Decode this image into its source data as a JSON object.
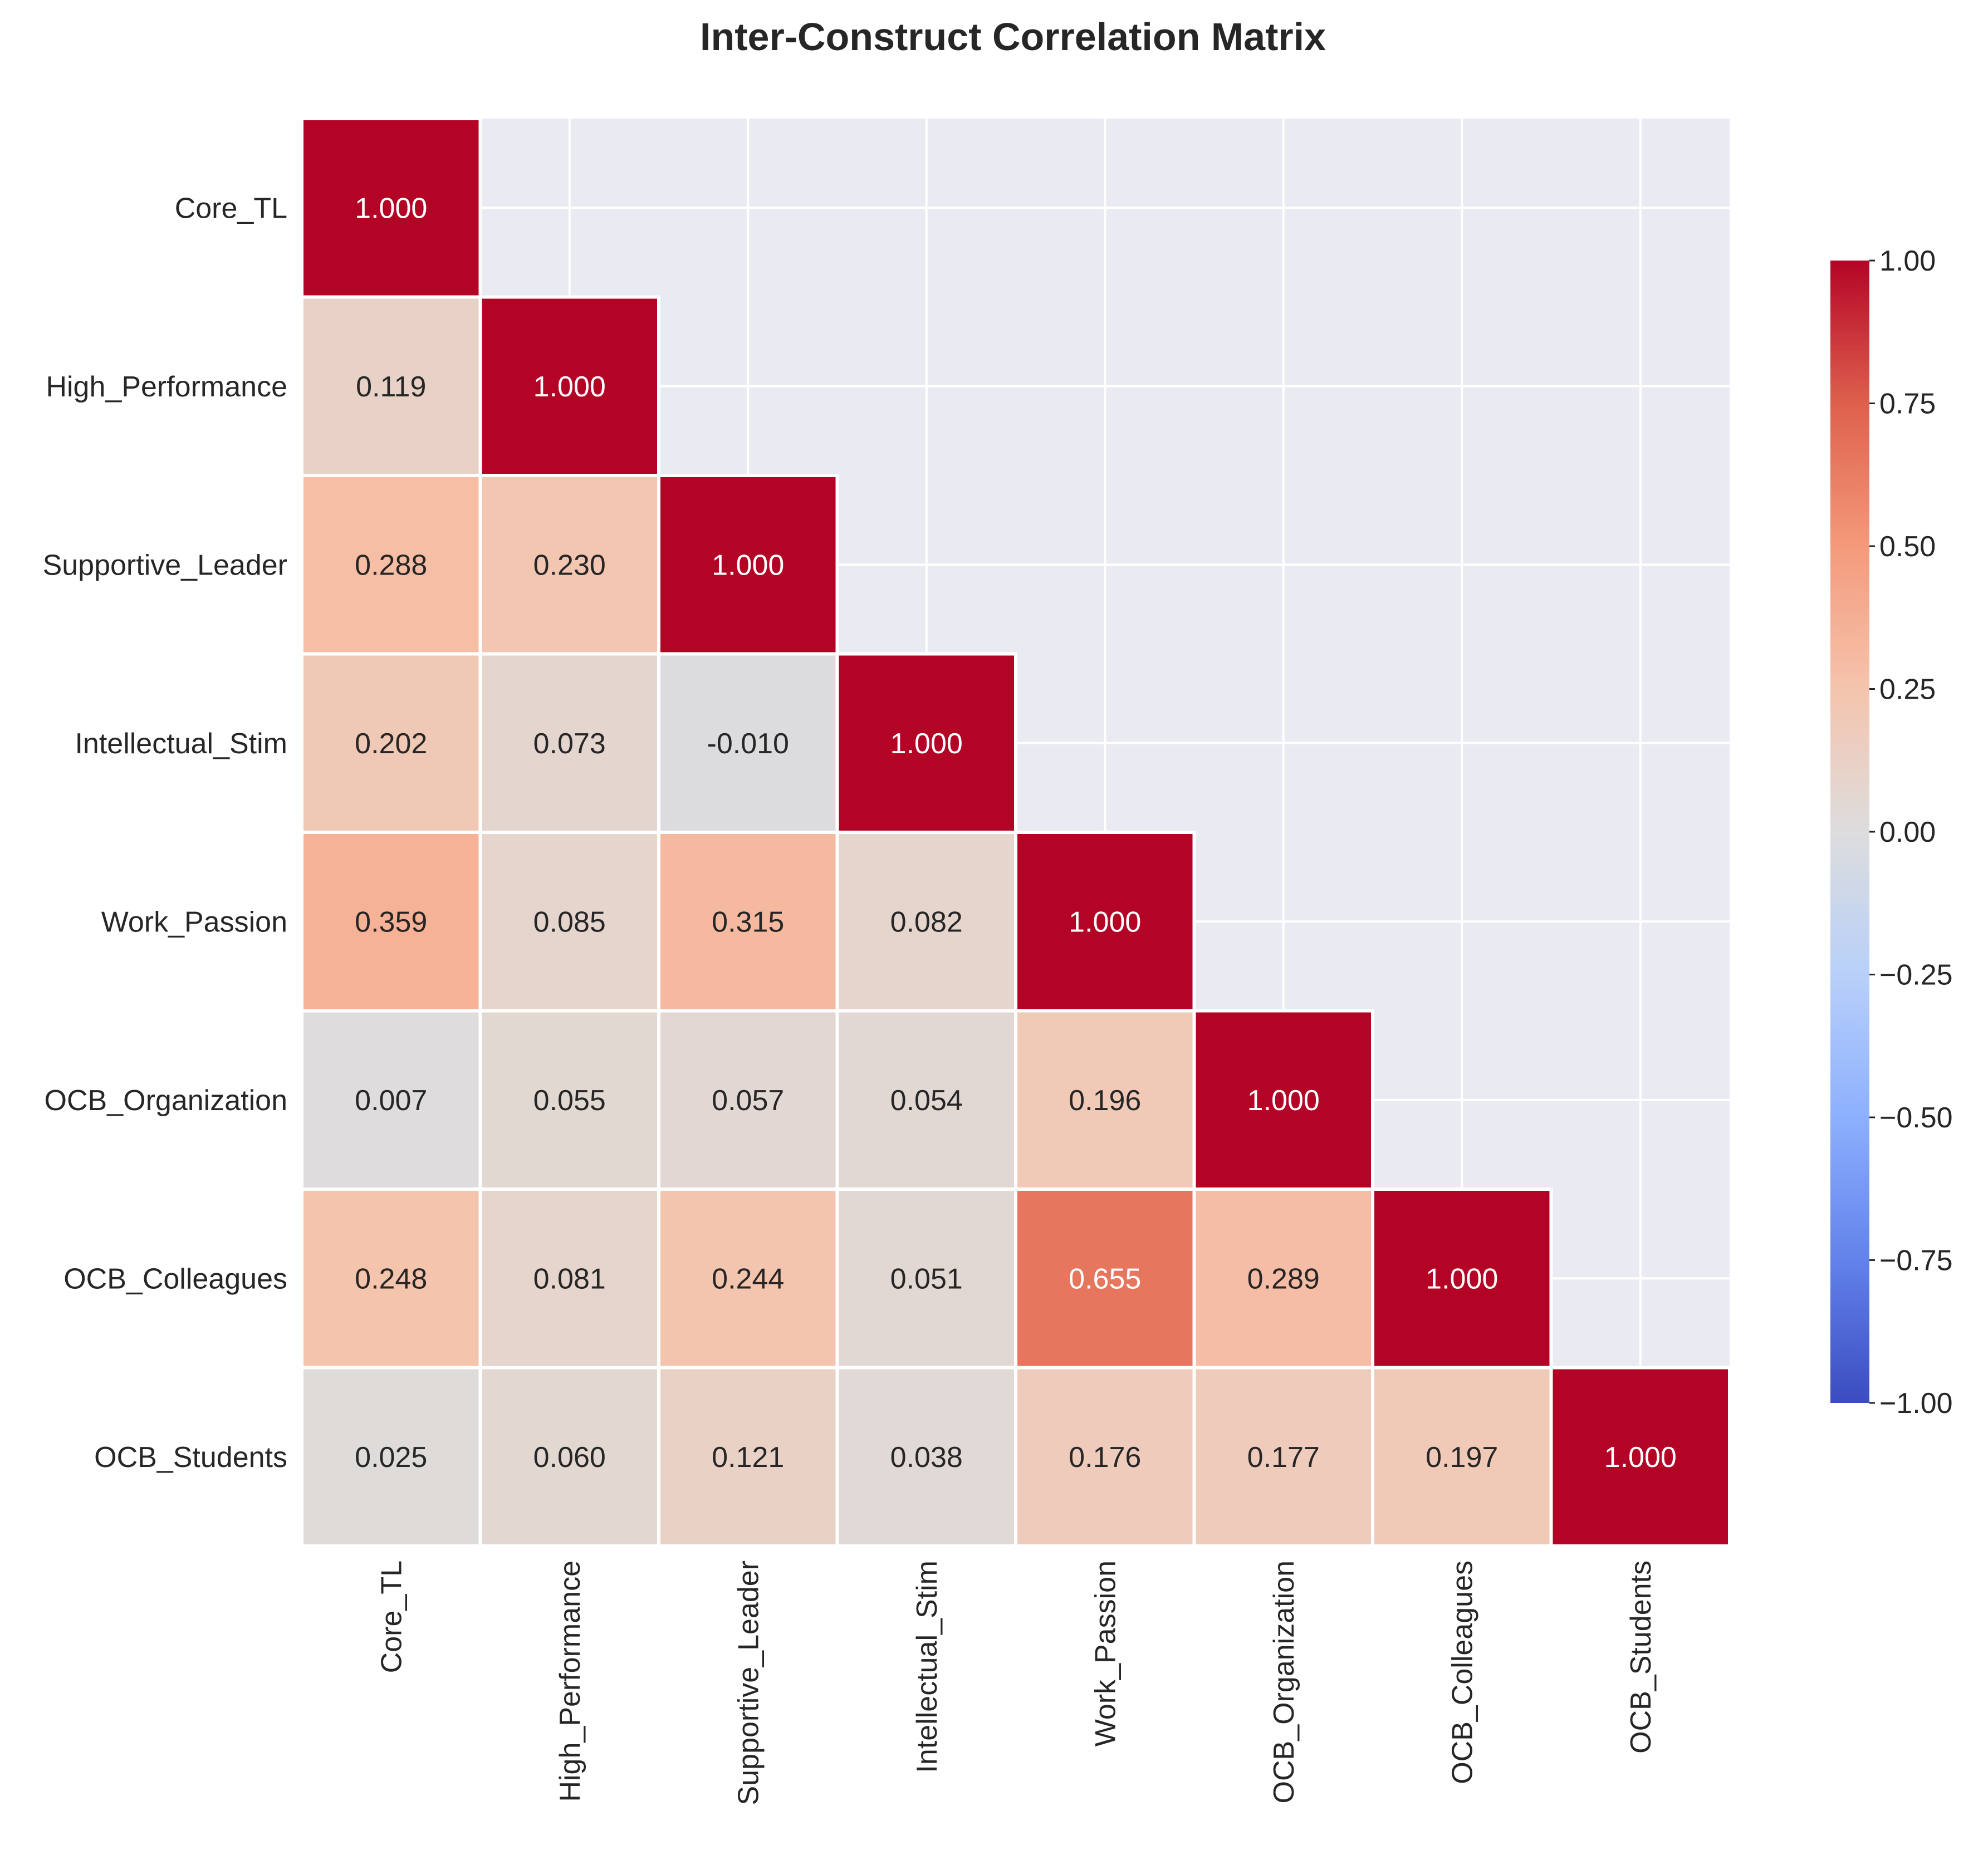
{
  "chart_data": {
    "type": "heatmap",
    "title": "Inter-Construct Correlation Matrix",
    "variables": [
      "Core_TL",
      "High_Performance",
      "Supportive_Leader",
      "Intellectual_Stim",
      "Work_Passion",
      "OCB_Organization",
      "OCB_Colleagues",
      "OCB_Students"
    ],
    "mask": "upper-triangle hidden (lower triangle incl. diagonal shown)",
    "values": [
      [
        1.0,
        null,
        null,
        null,
        null,
        null,
        null,
        null
      ],
      [
        0.119,
        1.0,
        null,
        null,
        null,
        null,
        null,
        null
      ],
      [
        0.288,
        0.23,
        1.0,
        null,
        null,
        null,
        null,
        null
      ],
      [
        0.202,
        0.073,
        -0.01,
        1.0,
        null,
        null,
        null,
        null
      ],
      [
        0.359,
        0.085,
        0.315,
        0.082,
        1.0,
        null,
        null,
        null
      ],
      [
        0.007,
        0.055,
        0.057,
        0.054,
        0.196,
        1.0,
        null,
        null
      ],
      [
        0.248,
        0.081,
        0.244,
        0.051,
        0.655,
        0.289,
        1.0,
        null
      ],
      [
        0.025,
        0.06,
        0.121,
        0.038,
        0.176,
        0.177,
        0.197,
        1.0
      ]
    ],
    "value_format": "3 decimals",
    "colormap": "coolwarm",
    "vmin": -1.0,
    "vmax": 1.0,
    "colorbar": {
      "ticks": [
        1.0,
        0.75,
        0.5,
        0.25,
        0.0,
        -0.25,
        -0.5,
        -0.75,
        -1.0
      ],
      "tick_labels": [
        "1.00",
        "0.75",
        "0.50",
        "0.25",
        "0.00",
        "−0.25",
        "−0.50",
        "−0.75",
        "−1.00"
      ],
      "placement": "right"
    },
    "grid": true,
    "background_color": "#eaeaf2",
    "grid_color": "#ffffff"
  }
}
